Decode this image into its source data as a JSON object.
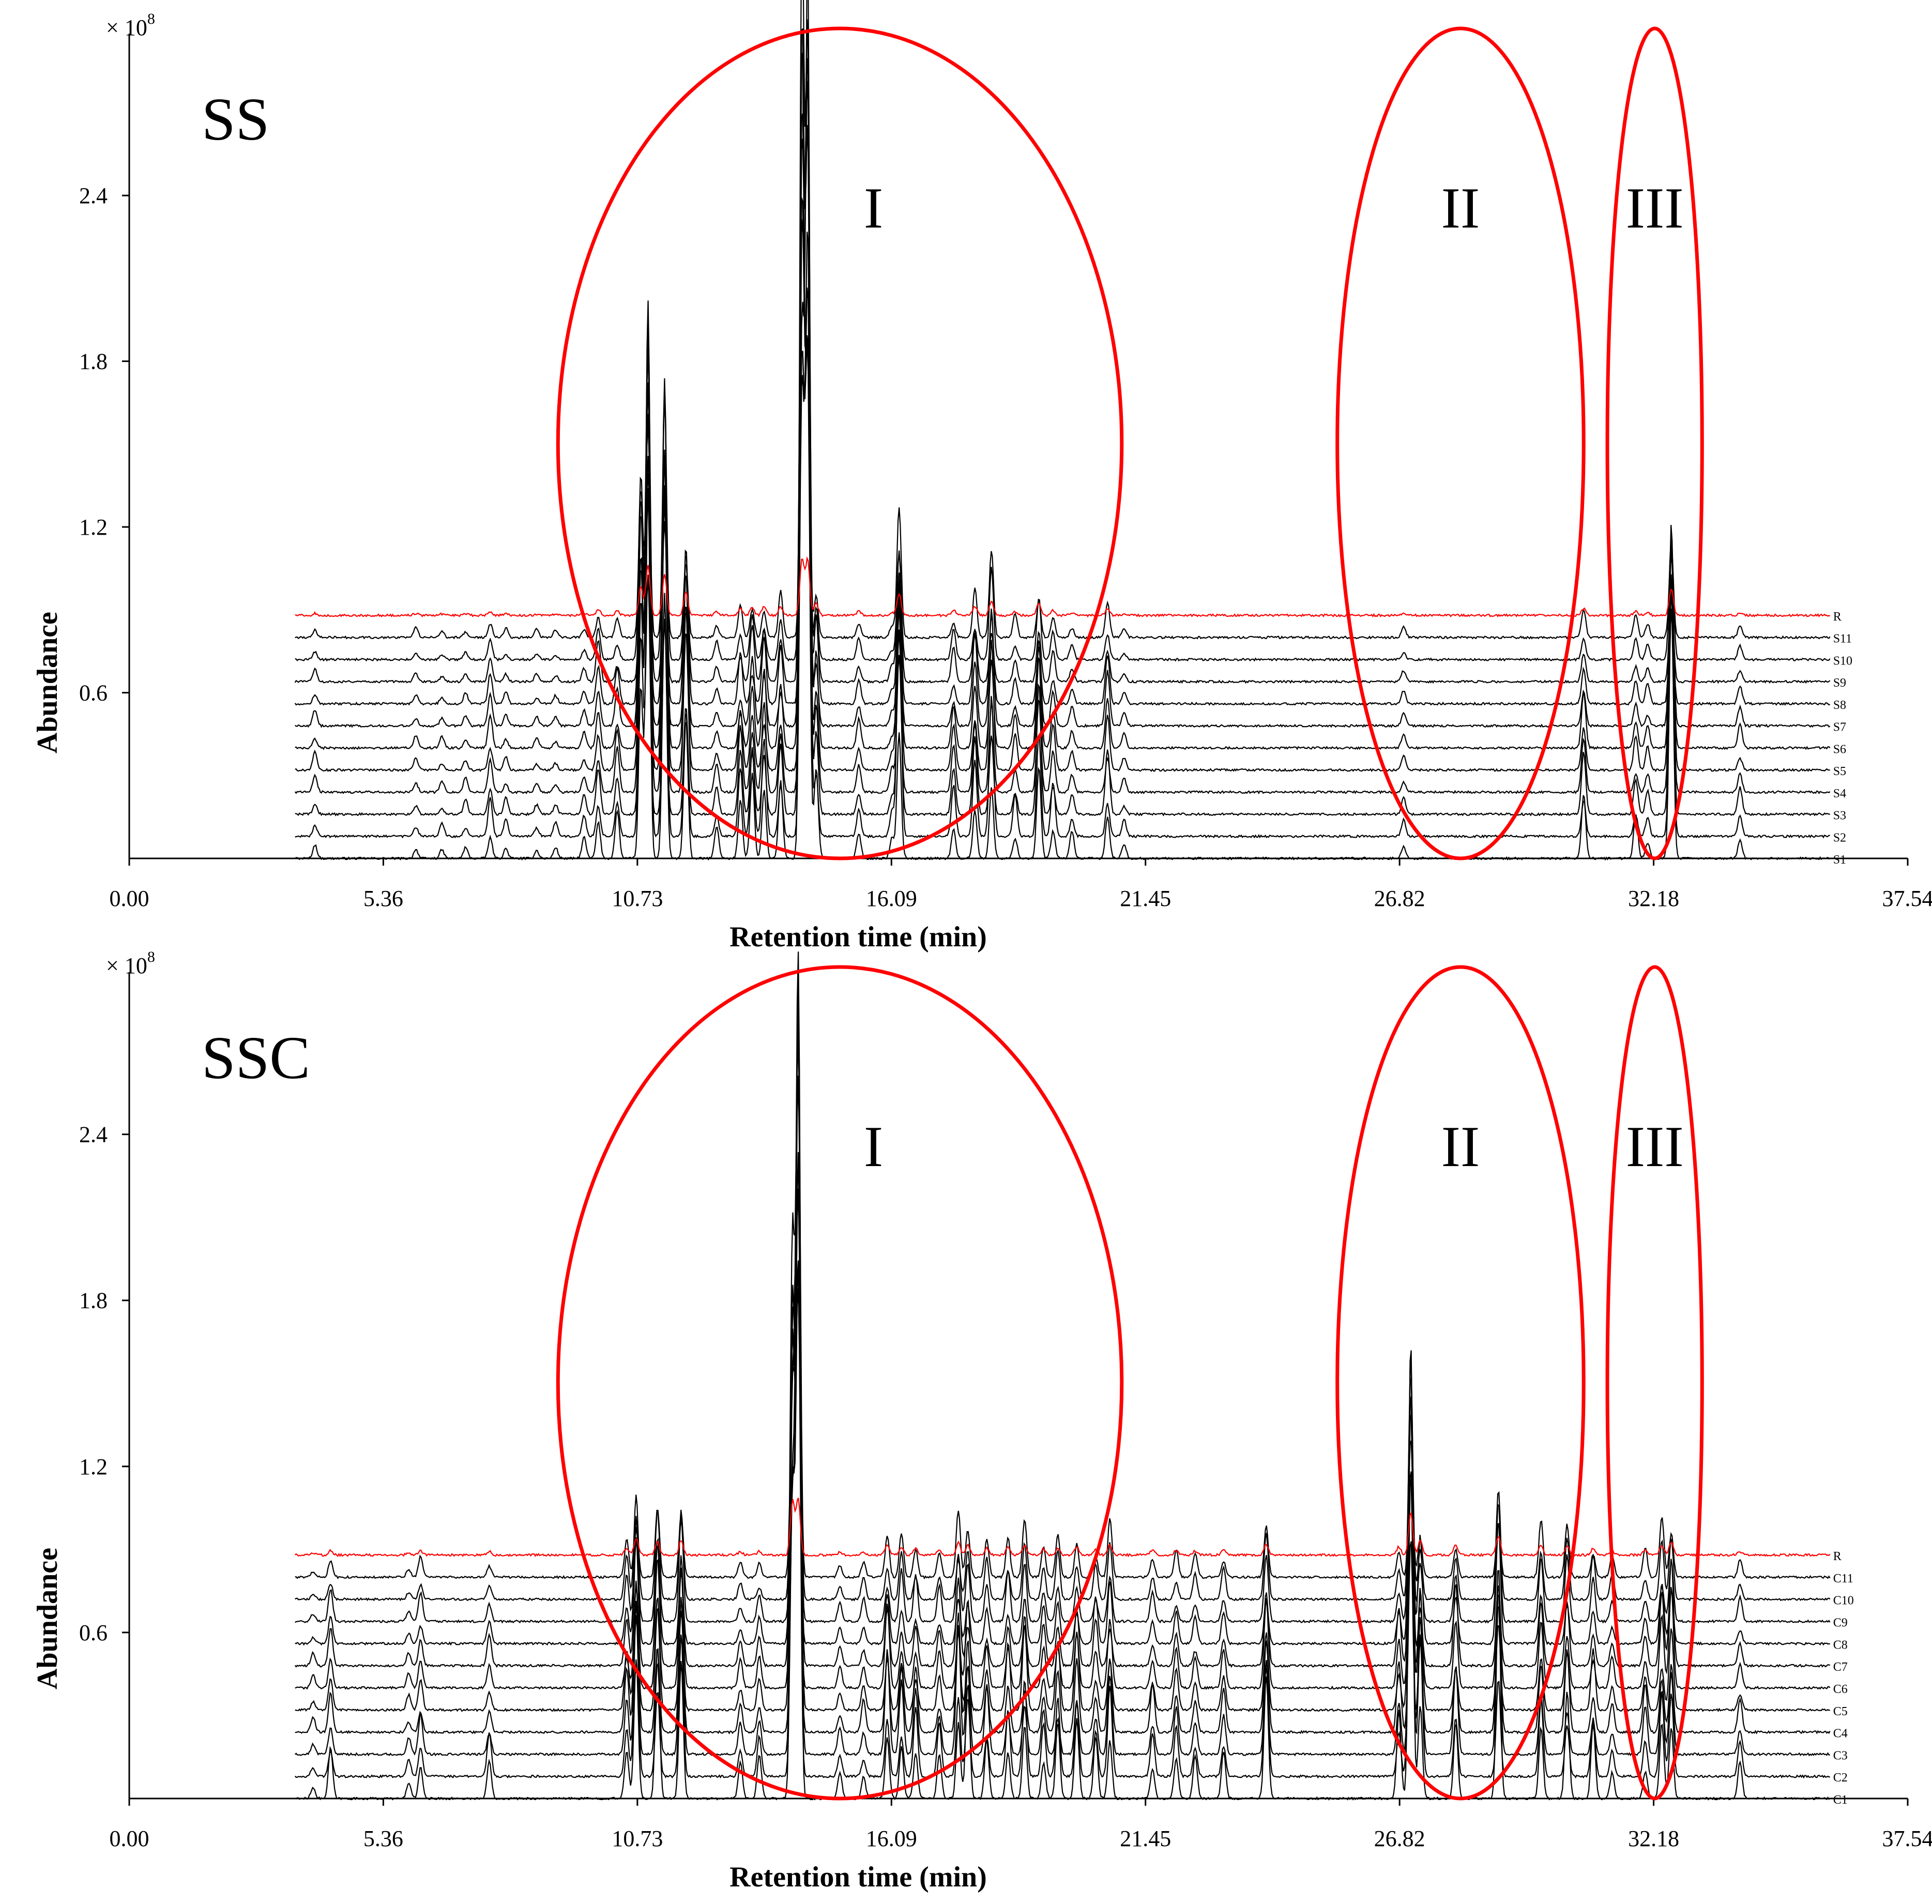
{
  "figure": {
    "scale_label": "× 10",
    "scale_exponent": "8"
  },
  "colors": {
    "axis": "#000000",
    "trace": "#000000",
    "reference": "#ff0000",
    "circle": "#ff0000"
  },
  "chart_data": [
    {
      "type": "line",
      "title": "SS",
      "xlabel": "Retention time (min)",
      "ylabel": "Abundance",
      "xlim": [
        0,
        37.54
      ],
      "ylim": [
        0,
        2.93
      ],
      "x_ticks": [
        "0.00",
        "5.36",
        "10.73",
        "16.09",
        "21.45",
        "26.82",
        "32.18",
        "37.54"
      ],
      "y_ticks": [
        "0.6",
        "1.2",
        "1.8",
        "2.4"
      ],
      "trace_start_min": 3.5,
      "trace_end_min": 35.9,
      "stack_offset_x_per_trace": 0.0,
      "series": [
        "S1",
        "S2",
        "S3",
        "S4",
        "S5",
        "S6",
        "S7",
        "S8",
        "S9",
        "S10",
        "S11",
        "R"
      ],
      "series_baseline": [
        0.0,
        0.08,
        0.16,
        0.24,
        0.32,
        0.4,
        0.48,
        0.56,
        0.64,
        0.72,
        0.8,
        0.88
      ],
      "reference_series": "R",
      "peaks": [
        {
          "rt": 3.92,
          "h": 0.06
        },
        {
          "rt": 6.05,
          "h": 0.05
        },
        {
          "rt": 6.6,
          "h": 0.04
        },
        {
          "rt": 7.1,
          "h": 0.05
        },
        {
          "rt": 7.62,
          "h": 0.12
        },
        {
          "rt": 7.95,
          "h": 0.05
        },
        {
          "rt": 8.6,
          "h": 0.04
        },
        {
          "rt": 9.0,
          "h": 0.04
        },
        {
          "rt": 9.6,
          "h": 0.06
        },
        {
          "rt": 9.9,
          "h": 0.18
        },
        {
          "rt": 10.3,
          "h": 0.14
        },
        {
          "rt": 10.8,
          "h": 0.85
        },
        {
          "rt": 10.95,
          "h": 1.5
        },
        {
          "rt": 11.3,
          "h": 1.25
        },
        {
          "rt": 11.75,
          "h": 0.7
        },
        {
          "rt": 12.4,
          "h": 0.1
        },
        {
          "rt": 12.9,
          "h": 0.2
        },
        {
          "rt": 13.15,
          "h": 0.25
        },
        {
          "rt": 13.4,
          "h": 0.28
        },
        {
          "rt": 13.75,
          "h": 0.25
        },
        {
          "rt": 14.2,
          "h": 2.8
        },
        {
          "rt": 14.32,
          "h": 2.5
        },
        {
          "rt": 14.5,
          "h": 0.35
        },
        {
          "rt": 15.4,
          "h": 0.12
        },
        {
          "rt": 16.1,
          "h": 0.08
        },
        {
          "rt": 16.25,
          "h": 0.65
        },
        {
          "rt": 17.4,
          "h": 0.15
        },
        {
          "rt": 17.85,
          "h": 0.28
        },
        {
          "rt": 18.2,
          "h": 0.42
        },
        {
          "rt": 18.7,
          "h": 0.12
        },
        {
          "rt": 19.2,
          "h": 0.38
        },
        {
          "rt": 19.5,
          "h": 0.15
        },
        {
          "rt": 19.9,
          "h": 0.08
        },
        {
          "rt": 20.65,
          "h": 0.2
        },
        {
          "rt": 21.0,
          "h": 0.05
        },
        {
          "rt": 26.9,
          "h": 0.06
        },
        {
          "rt": 30.7,
          "h": 0.2
        },
        {
          "rt": 31.8,
          "h": 0.12
        },
        {
          "rt": 32.05,
          "h": 0.08
        },
        {
          "rt": 32.55,
          "h": 0.8
        },
        {
          "rt": 34.0,
          "h": 0.08
        }
      ],
      "annotations": [
        {
          "label": "I",
          "center_rt": 15.0,
          "radius_rt": 5.95
        },
        {
          "label": "II",
          "center_rt": 28.1,
          "radius_rt": 2.6
        },
        {
          "label": "III",
          "center_rt": 32.2,
          "radius_rt": 1.0
        }
      ]
    },
    {
      "type": "line",
      "title": "SSC",
      "xlabel": "Retention time (min)",
      "ylabel": "Abundance",
      "xlim": [
        0,
        37.54
      ],
      "ylim": [
        0,
        2.93
      ],
      "x_ticks": [
        "0.00",
        "5.36",
        "10.73",
        "16.09",
        "21.45",
        "26.82",
        "32.18",
        "37.54"
      ],
      "y_ticks": [
        "0.6",
        "1.2",
        "1.8",
        "2.4"
      ],
      "trace_start_min": 3.5,
      "trace_end_min": 35.9,
      "series": [
        "C1",
        "C2",
        "C3",
        "C4",
        "C5",
        "C6",
        "C7",
        "C8",
        "C9",
        "C10",
        "C11",
        "R"
      ],
      "series_baseline": [
        0.0,
        0.08,
        0.16,
        0.24,
        0.32,
        0.4,
        0.48,
        0.56,
        0.64,
        0.72,
        0.8,
        0.88
      ],
      "reference_series": "R",
      "peaks": [
        {
          "rt": 3.88,
          "h": 0.05
        },
        {
          "rt": 4.25,
          "h": 0.14
        },
        {
          "rt": 5.9,
          "h": 0.06
        },
        {
          "rt": 6.15,
          "h": 0.12
        },
        {
          "rt": 7.6,
          "h": 0.12
        },
        {
          "rt": 10.5,
          "h": 0.2
        },
        {
          "rt": 10.7,
          "h": 0.5
        },
        {
          "rt": 11.15,
          "h": 0.42
        },
        {
          "rt": 11.65,
          "h": 0.45
        },
        {
          "rt": 12.9,
          "h": 0.1
        },
        {
          "rt": 13.3,
          "h": 0.12
        },
        {
          "rt": 14.0,
          "h": 1.6
        },
        {
          "rt": 14.12,
          "h": 2.6
        },
        {
          "rt": 15.0,
          "h": 0.08
        },
        {
          "rt": 15.5,
          "h": 0.1
        },
        {
          "rt": 16.0,
          "h": 0.3
        },
        {
          "rt": 16.3,
          "h": 0.22
        },
        {
          "rt": 16.6,
          "h": 0.2
        },
        {
          "rt": 17.1,
          "h": 0.15
        },
        {
          "rt": 17.5,
          "h": 0.38
        },
        {
          "rt": 17.7,
          "h": 0.3
        },
        {
          "rt": 18.1,
          "h": 0.2
        },
        {
          "rt": 18.55,
          "h": 0.22
        },
        {
          "rt": 18.9,
          "h": 0.28
        },
        {
          "rt": 19.3,
          "h": 0.2
        },
        {
          "rt": 19.6,
          "h": 0.22
        },
        {
          "rt": 20.0,
          "h": 0.25
        },
        {
          "rt": 20.4,
          "h": 0.18
        },
        {
          "rt": 20.7,
          "h": 0.3
        },
        {
          "rt": 21.6,
          "h": 0.15
        },
        {
          "rt": 22.1,
          "h": 0.14
        },
        {
          "rt": 22.5,
          "h": 0.12
        },
        {
          "rt": 23.1,
          "h": 0.15
        },
        {
          "rt": 24.0,
          "h": 0.32
        },
        {
          "rt": 26.8,
          "h": 0.25
        },
        {
          "rt": 27.05,
          "h": 1.25
        },
        {
          "rt": 27.25,
          "h": 0.42
        },
        {
          "rt": 28.0,
          "h": 0.3
        },
        {
          "rt": 28.9,
          "h": 0.55
        },
        {
          "rt": 29.8,
          "h": 0.3
        },
        {
          "rt": 30.35,
          "h": 0.28
        },
        {
          "rt": 30.9,
          "h": 0.2
        },
        {
          "rt": 31.3,
          "h": 0.12
        },
        {
          "rt": 32.0,
          "h": 0.15
        },
        {
          "rt": 32.35,
          "h": 0.3
        },
        {
          "rt": 32.55,
          "h": 0.4
        },
        {
          "rt": 34.0,
          "h": 0.1
        }
      ],
      "annotations": [
        {
          "label": "I",
          "center_rt": 15.0,
          "radius_rt": 5.95
        },
        {
          "label": "II",
          "center_rt": 28.1,
          "radius_rt": 2.6
        },
        {
          "label": "III",
          "center_rt": 32.2,
          "radius_rt": 1.0
        }
      ]
    }
  ]
}
